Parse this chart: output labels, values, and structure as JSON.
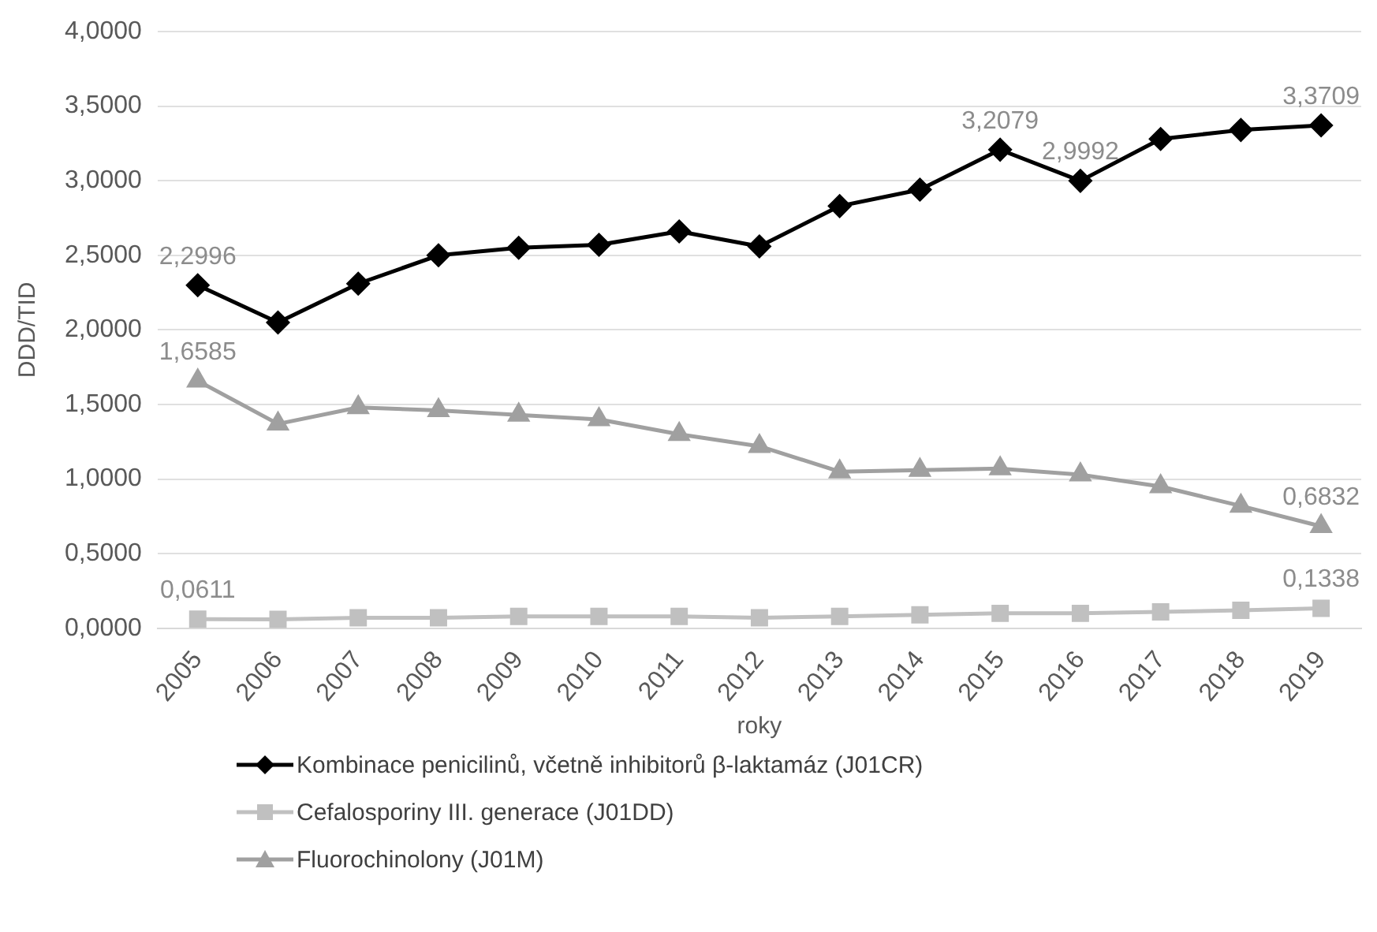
{
  "chart_data": {
    "type": "line",
    "xlabel": "roky",
    "ylabel": "DDD/TID",
    "categories": [
      "2005",
      "2006",
      "2007",
      "2008",
      "2009",
      "2010",
      "2011",
      "2012",
      "2013",
      "2014",
      "2015",
      "2016",
      "2017",
      "2018",
      "2019"
    ],
    "series": [
      {
        "name": "Kombinace penicilinů, včetně inhibitorů β-laktamáz (J01CR)",
        "color": "#000000",
        "marker": "diamond",
        "values": [
          2.2996,
          2.05,
          2.31,
          2.5,
          2.55,
          2.57,
          2.66,
          2.56,
          2.83,
          2.94,
          3.2079,
          2.9992,
          3.28,
          3.34,
          3.3709
        ],
        "value_labels": [
          "2,2996",
          null,
          null,
          null,
          null,
          null,
          null,
          null,
          null,
          null,
          "3,2079",
          "2,9992",
          null,
          null,
          "3,3709"
        ]
      },
      {
        "name": "Cefalosporiny III. generace (J01DD)",
        "color": "#c0c0c0",
        "marker": "square",
        "values": [
          0.0611,
          0.06,
          0.07,
          0.07,
          0.08,
          0.08,
          0.08,
          0.07,
          0.08,
          0.09,
          0.1,
          0.1,
          0.11,
          0.12,
          0.1338
        ],
        "value_labels": [
          "0,0611",
          null,
          null,
          null,
          null,
          null,
          null,
          null,
          null,
          null,
          null,
          null,
          null,
          null,
          "0,1338"
        ]
      },
      {
        "name": "Fluorochinolony (J01M)",
        "color": "#a0a0a0",
        "marker": "triangle",
        "values": [
          1.6585,
          1.37,
          1.48,
          1.46,
          1.43,
          1.4,
          1.3,
          1.22,
          1.05,
          1.06,
          1.07,
          1.03,
          0.95,
          0.82,
          0.6832
        ],
        "value_labels": [
          "1,6585",
          null,
          null,
          null,
          null,
          null,
          null,
          null,
          null,
          null,
          null,
          null,
          null,
          null,
          "0,6832"
        ]
      }
    ],
    "ylim": [
      0,
      4
    ],
    "yticks": [
      {
        "value": 0,
        "label": "0,0000"
      },
      {
        "value": 0.5,
        "label": "0,5000"
      },
      {
        "value": 1,
        "label": "1,0000"
      },
      {
        "value": 1.5,
        "label": "1,5000"
      },
      {
        "value": 2,
        "label": "2,0000"
      },
      {
        "value": 2.5,
        "label": "2,5000"
      },
      {
        "value": 3,
        "label": "3,0000"
      },
      {
        "value": 3.5,
        "label": "3,5000"
      },
      {
        "value": 4,
        "label": "4,0000"
      }
    ],
    "grid": "y",
    "legend": "bottom",
    "line_style": "solid"
  }
}
